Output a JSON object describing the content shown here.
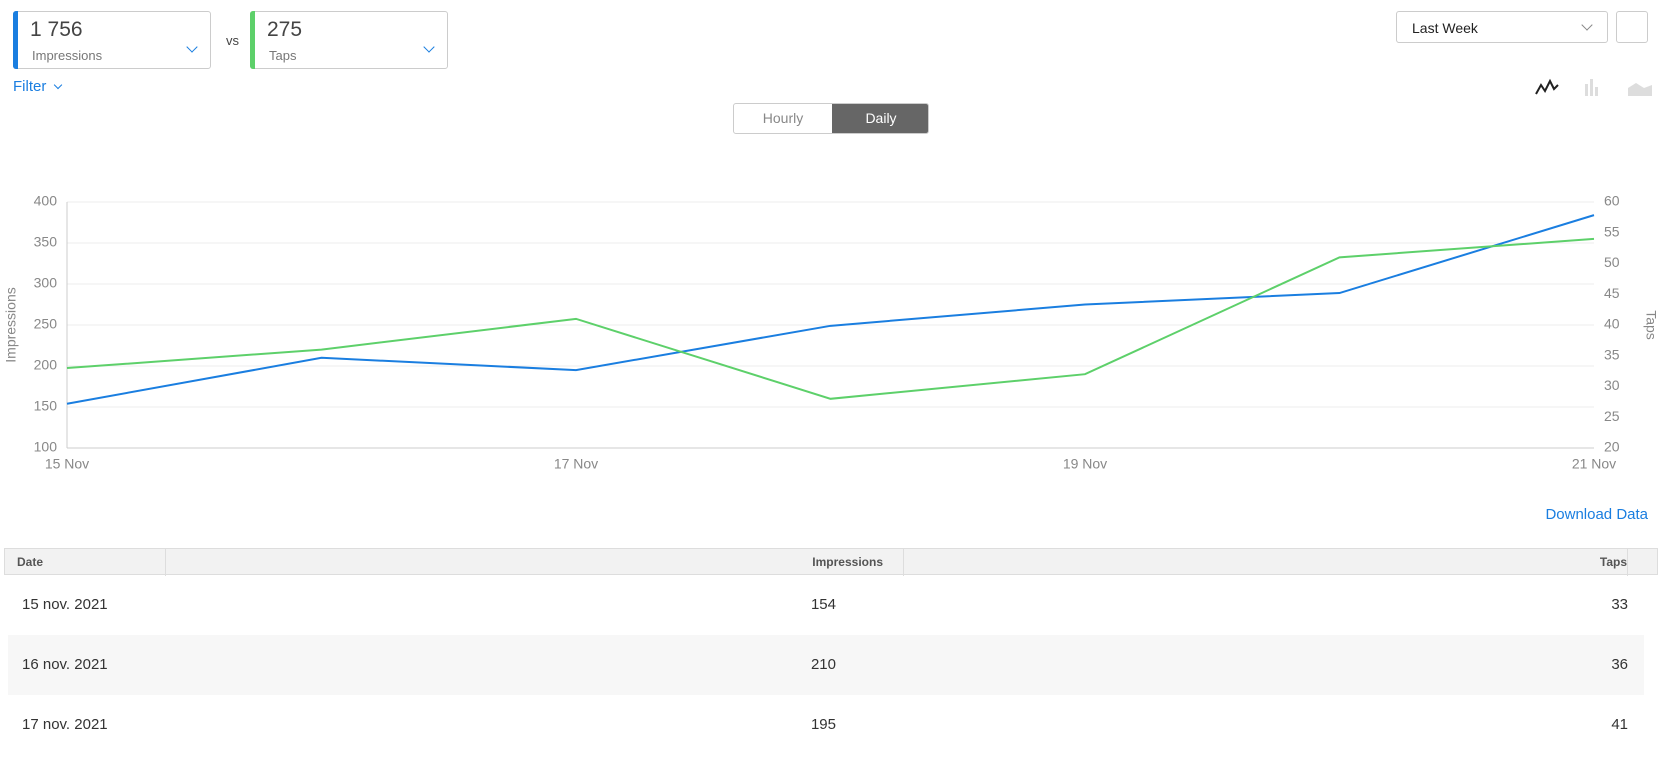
{
  "header": {
    "metrics": [
      {
        "value": "1 756",
        "label": "Impressions",
        "color": "#1a7ee0"
      },
      {
        "value": "275",
        "label": "Taps",
        "color": "#5dd06a"
      }
    ],
    "vs": "vs",
    "filter": "Filter",
    "period": "Last Week"
  },
  "toggle": [
    "Hourly",
    "Daily"
  ],
  "chart_data": {
    "type": "line",
    "categories": [
      "15 Nov",
      null,
      "17 Nov",
      null,
      "19 Nov",
      null,
      "21 Nov"
    ],
    "ylabel": "Impressions",
    "y2label": "Taps",
    "ylim": [
      100,
      400
    ],
    "yticks": [
      100,
      150,
      200,
      250,
      300,
      350,
      400
    ],
    "y2lim": [
      20,
      60
    ],
    "y2ticks": [
      20,
      25,
      30,
      35,
      40,
      45,
      50,
      55,
      60
    ],
    "grid": true,
    "series": [
      {
        "name": "Impressions",
        "color": "#1a7ee0",
        "values": [
          154,
          210,
          195,
          249,
          275,
          289,
          384
        ]
      },
      {
        "name": "Taps",
        "axis": "y2",
        "color": "#5dd06a",
        "values": [
          33,
          36,
          41,
          28,
          32,
          51,
          54
        ]
      }
    ]
  },
  "download": "Download Data",
  "table": {
    "columns": [
      "Date",
      "Impressions",
      "Taps"
    ],
    "rows": [
      [
        "15 nov. 2021",
        154,
        33
      ],
      [
        "16 nov. 2021",
        210,
        36
      ],
      [
        "17 nov. 2021",
        195,
        41
      ]
    ]
  }
}
